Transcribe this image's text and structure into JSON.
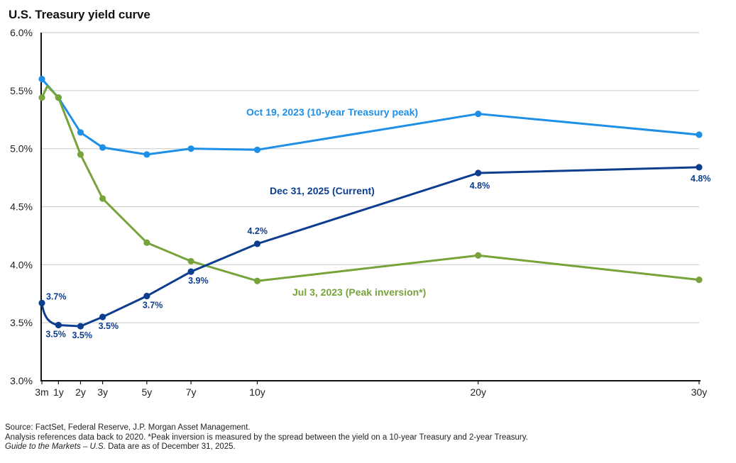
{
  "title": "U.S. Treasury yield curve",
  "chart_data": {
    "type": "line",
    "title": "U.S. Treasury yield curve",
    "xlabel": "",
    "ylabel": "",
    "x_scale": "linear maturity (years)",
    "ylim": [
      3.0,
      6.0
    ],
    "yticks": [
      3.0,
      3.5,
      4.0,
      4.5,
      5.0,
      5.5,
      6.0
    ],
    "ytick_labels": [
      "3.0%",
      "3.5%",
      "4.0%",
      "4.5%",
      "5.0%",
      "5.5%",
      "6.0%"
    ],
    "xticks": [
      {
        "label": "3m",
        "years": 0.25
      },
      {
        "label": "1y",
        "years": 1
      },
      {
        "label": "2y",
        "years": 2
      },
      {
        "label": "3y",
        "years": 3
      },
      {
        "label": "5y",
        "years": 5
      },
      {
        "label": "7y",
        "years": 7
      },
      {
        "label": "10y",
        "years": 10
      },
      {
        "label": "20y",
        "years": 20
      },
      {
        "label": "30y",
        "years": 30
      }
    ],
    "xlim": [
      0.25,
      30
    ],
    "grid": "horizontal",
    "series": [
      {
        "name": "Oct 19, 2023 (10-year Treasury peak)",
        "color": "#1e8fe6",
        "x": [
          0.25,
          1,
          2,
          3,
          5,
          7,
          10,
          20,
          30
        ],
        "values": [
          5.6,
          5.44,
          5.14,
          5.01,
          4.95,
          5.0,
          4.99,
          5.3,
          5.12
        ],
        "markers": [
          true,
          true,
          true,
          true,
          true,
          true,
          true,
          true,
          true
        ]
      },
      {
        "name": "Jul 3, 2023 (Peak inversion*)",
        "color": "#76a33a",
        "x": [
          0.25,
          0.5,
          1,
          2,
          3,
          5,
          7,
          10,
          20,
          30
        ],
        "values": [
          5.44,
          5.54,
          5.44,
          4.95,
          4.57,
          4.19,
          4.03,
          3.86,
          4.08,
          3.87
        ],
        "markers": [
          true,
          false,
          true,
          true,
          true,
          true,
          true,
          true,
          true,
          true
        ]
      },
      {
        "name": "Dec 31, 2025 (Current)",
        "color": "#0d3d8f",
        "x": [
          0.25,
          1,
          2,
          3,
          5,
          7,
          10,
          20,
          30
        ],
        "values": [
          3.67,
          3.48,
          3.47,
          3.55,
          3.73,
          3.94,
          4.18,
          4.79,
          4.84
        ],
        "markers": [
          true,
          true,
          true,
          true,
          true,
          true,
          true,
          true,
          true
        ],
        "data_labels": [
          "3.7%",
          "3.5%",
          "3.5%",
          "3.5%",
          "3.7%",
          "3.9%",
          "4.2%",
          "4.8%",
          "4.8%"
        ]
      }
    ],
    "annotations": [
      {
        "text": "Oct 19, 2023 (10-year Treasury peak)",
        "series": 0
      },
      {
        "text": "Dec 31, 2025 (Current)",
        "series": 2
      },
      {
        "text": "Jul 3, 2023 (Peak inversion*)",
        "series": 1
      }
    ]
  },
  "footer": {
    "line1": "Source: FactSet, Federal Reserve, J.P. Morgan Asset Management.",
    "line2": "Analysis references data back to 2020. *Peak inversion is measured by the spread between the yield on a 10-year Treasury and 2-year Treasury.",
    "line3_italic": "Guide to the Markets – U.S.",
    "line3_rest": " Data are as of December 31, 2025."
  }
}
